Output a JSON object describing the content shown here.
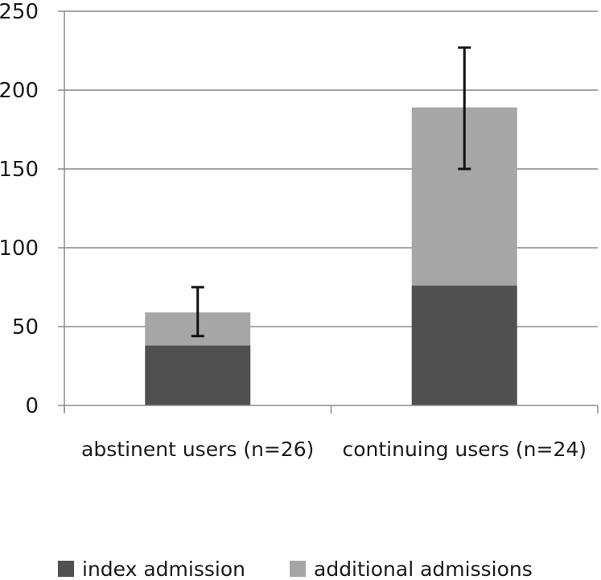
{
  "chart_data": {
    "type": "bar",
    "stacked": true,
    "categories": [
      "abstinent users (n=26)",
      "continuing users (n=24)"
    ],
    "series": [
      {
        "name": "index admission",
        "values": [
          38,
          76
        ],
        "color": "#505050"
      },
      {
        "name": "additional admissions",
        "values": [
          21,
          113
        ],
        "color": "#a6a6a6"
      }
    ],
    "totals": [
      59,
      189
    ],
    "error_bars": [
      {
        "low": 44,
        "high": 75
      },
      {
        "low": 150,
        "high": 227
      }
    ],
    "ylim": [
      0,
      250
    ],
    "yticks": [
      0,
      50,
      100,
      150,
      200,
      250
    ],
    "grid": true,
    "legend_position": "bottom"
  }
}
